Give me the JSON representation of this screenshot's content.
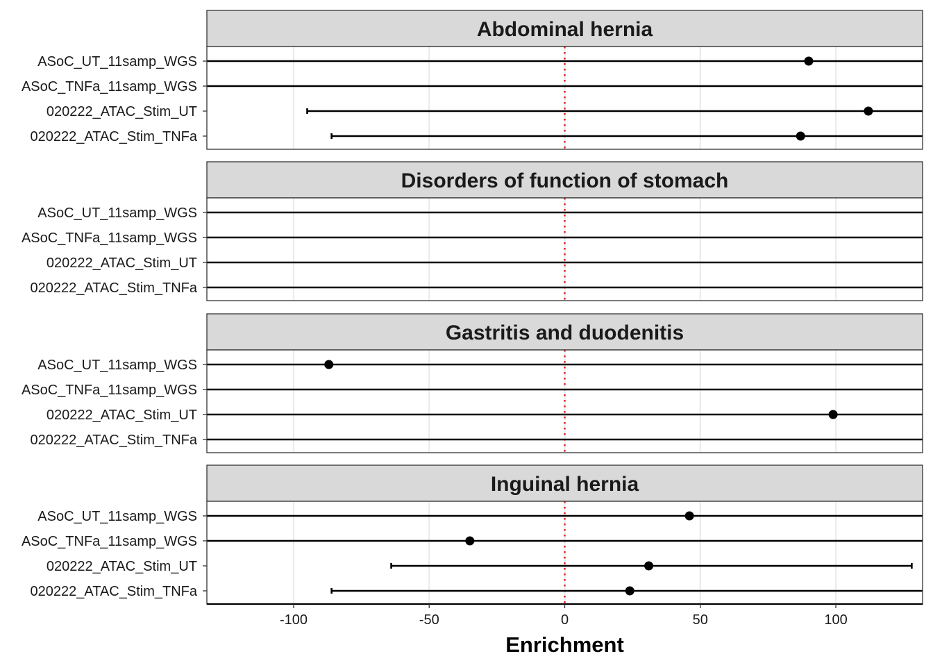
{
  "chart_data": {
    "type": "forest",
    "xlabel": "Enrichment",
    "xlim": [
      -132,
      132
    ],
    "xticks": [
      -100,
      -50,
      0,
      50,
      100
    ],
    "xtick_labels": [
      "-100",
      "-50",
      "0",
      "50",
      "100"
    ],
    "reference_line": {
      "x": 0,
      "color": "#e31a1c",
      "style": "dotted"
    },
    "grid": true,
    "row_labels": [
      "ASoC_UT_11samp_WGS",
      "ASoC_TNFa_11samp_WGS",
      "020222_ATAC_Stim_UT",
      "020222_ATAC_Stim_TNFa"
    ],
    "panels": [
      {
        "title": "Abdominal hernia",
        "rows": [
          {
            "label": "ASoC_UT_11samp_WGS",
            "estimate": 90,
            "lower": null,
            "upper": null
          },
          {
            "label": "ASoC_TNFa_11samp_WGS",
            "estimate": null,
            "lower": null,
            "upper": null
          },
          {
            "label": "020222_ATAC_Stim_UT",
            "estimate": 112,
            "lower": -95,
            "upper": null
          },
          {
            "label": "020222_ATAC_Stim_TNFa",
            "estimate": 87,
            "lower": -86,
            "upper": null
          }
        ]
      },
      {
        "title": "Disorders of function of stomach",
        "rows": [
          {
            "label": "ASoC_UT_11samp_WGS",
            "estimate": null,
            "lower": null,
            "upper": null
          },
          {
            "label": "ASoC_TNFa_11samp_WGS",
            "estimate": null,
            "lower": null,
            "upper": null
          },
          {
            "label": "020222_ATAC_Stim_UT",
            "estimate": null,
            "lower": null,
            "upper": null
          },
          {
            "label": "020222_ATAC_Stim_TNFa",
            "estimate": null,
            "lower": null,
            "upper": null
          }
        ]
      },
      {
        "title": "Gastritis and duodenitis",
        "rows": [
          {
            "label": "ASoC_UT_11samp_WGS",
            "estimate": -87,
            "lower": null,
            "upper": null
          },
          {
            "label": "ASoC_TNFa_11samp_WGS",
            "estimate": null,
            "lower": null,
            "upper": null
          },
          {
            "label": "020222_ATAC_Stim_UT",
            "estimate": 99,
            "lower": null,
            "upper": null
          },
          {
            "label": "020222_ATAC_Stim_TNFa",
            "estimate": null,
            "lower": null,
            "upper": null
          }
        ]
      },
      {
        "title": "Inguinal hernia",
        "rows": [
          {
            "label": "ASoC_UT_11samp_WGS",
            "estimate": 46,
            "lower": null,
            "upper": null
          },
          {
            "label": "ASoC_TNFa_11samp_WGS",
            "estimate": -35,
            "lower": null,
            "upper": null
          },
          {
            "label": "020222_ATAC_Stim_UT",
            "estimate": 31,
            "lower": -64,
            "upper": 128
          },
          {
            "label": "020222_ATAC_Stim_TNFa",
            "estimate": 24,
            "lower": -86,
            "upper": null
          }
        ]
      }
    ]
  }
}
